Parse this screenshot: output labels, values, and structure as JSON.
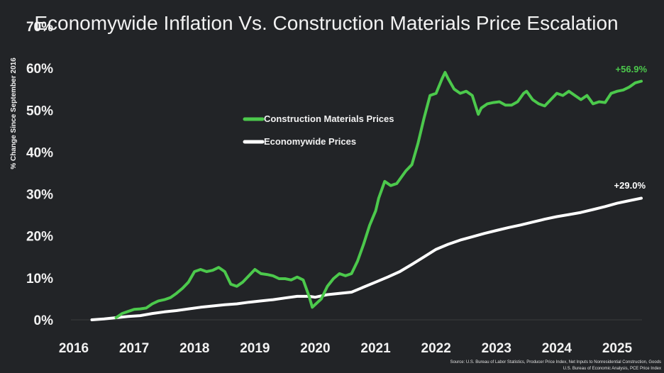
{
  "chart_data": {
    "type": "line",
    "title": "Economywide Inflation Vs. Construction Materials Price Escalation",
    "ylabel": "% Change Since September 2016",
    "xlabel": "",
    "ylim": [
      0,
      70
    ],
    "xlim": [
      2016,
      2025.4
    ],
    "y_ticks": [
      "0%",
      "10%",
      "20%",
      "30%",
      "40%",
      "50%",
      "60%",
      "70%"
    ],
    "x_ticks": [
      "2016",
      "2017",
      "2018",
      "2019",
      "2020",
      "2021",
      "2022",
      "2023",
      "2024",
      "2025"
    ],
    "legend_position": "center-left",
    "grid": false,
    "series": [
      {
        "name": "Construction Materials Prices",
        "color": "#4cc94c",
        "end_label": "+56.9%",
        "points": [
          [
            2016.7,
            0.5
          ],
          [
            2016.8,
            1.5
          ],
          [
            2016.9,
            2.0
          ],
          [
            2017.0,
            2.5
          ],
          [
            2017.1,
            2.6
          ],
          [
            2017.2,
            2.8
          ],
          [
            2017.3,
            3.8
          ],
          [
            2017.4,
            4.5
          ],
          [
            2017.5,
            4.8
          ],
          [
            2017.6,
            5.3
          ],
          [
            2017.7,
            6.3
          ],
          [
            2017.8,
            7.5
          ],
          [
            2017.9,
            9.0
          ],
          [
            2018.0,
            11.5
          ],
          [
            2018.1,
            12.0
          ],
          [
            2018.2,
            11.5
          ],
          [
            2018.3,
            11.8
          ],
          [
            2018.4,
            12.5
          ],
          [
            2018.5,
            11.5
          ],
          [
            2018.6,
            8.5
          ],
          [
            2018.7,
            8.0
          ],
          [
            2018.8,
            9.0
          ],
          [
            2018.9,
            10.5
          ],
          [
            2019.0,
            12.0
          ],
          [
            2019.1,
            11.0
          ],
          [
            2019.2,
            10.8
          ],
          [
            2019.3,
            10.5
          ],
          [
            2019.4,
            9.8
          ],
          [
            2019.5,
            9.8
          ],
          [
            2019.6,
            9.5
          ],
          [
            2019.7,
            10.2
          ],
          [
            2019.8,
            9.5
          ],
          [
            2019.9,
            5.5
          ],
          [
            2019.95,
            3.0
          ],
          [
            2020.1,
            5.0
          ],
          [
            2020.2,
            8.0
          ],
          [
            2020.3,
            9.8
          ],
          [
            2020.4,
            11.0
          ],
          [
            2020.5,
            10.5
          ],
          [
            2020.6,
            11.0
          ],
          [
            2020.7,
            14.0
          ],
          [
            2020.8,
            18.0
          ],
          [
            2020.9,
            22.5
          ],
          [
            2021.0,
            26.0
          ],
          [
            2021.05,
            29.0
          ],
          [
            2021.15,
            33.0
          ],
          [
            2021.25,
            32.0
          ],
          [
            2021.35,
            32.5
          ],
          [
            2021.5,
            35.5
          ],
          [
            2021.6,
            37.0
          ],
          [
            2021.7,
            42.0
          ],
          [
            2021.8,
            48.0
          ],
          [
            2021.9,
            53.5
          ],
          [
            2022.0,
            54.0
          ],
          [
            2022.1,
            57.5
          ],
          [
            2022.15,
            59.0
          ],
          [
            2022.2,
            57.5
          ],
          [
            2022.3,
            55.0
          ],
          [
            2022.4,
            54.0
          ],
          [
            2022.5,
            54.5
          ],
          [
            2022.6,
            53.5
          ],
          [
            2022.7,
            49.0
          ],
          [
            2022.75,
            50.5
          ],
          [
            2022.85,
            51.5
          ],
          [
            2022.95,
            51.8
          ],
          [
            2023.05,
            52.0
          ],
          [
            2023.15,
            51.2
          ],
          [
            2023.25,
            51.2
          ],
          [
            2023.35,
            52.0
          ],
          [
            2023.45,
            54.0
          ],
          [
            2023.5,
            54.5
          ],
          [
            2023.6,
            52.5
          ],
          [
            2023.7,
            51.5
          ],
          [
            2023.8,
            51.0
          ],
          [
            2023.9,
            52.5
          ],
          [
            2024.0,
            54.0
          ],
          [
            2024.1,
            53.5
          ],
          [
            2024.2,
            54.5
          ],
          [
            2024.3,
            53.5
          ],
          [
            2024.4,
            52.5
          ],
          [
            2024.5,
            53.5
          ],
          [
            2024.6,
            51.5
          ],
          [
            2024.7,
            52.0
          ],
          [
            2024.8,
            51.8
          ],
          [
            2024.9,
            54.0
          ],
          [
            2025.0,
            54.5
          ],
          [
            2025.1,
            54.8
          ],
          [
            2025.2,
            55.5
          ],
          [
            2025.3,
            56.5
          ],
          [
            2025.4,
            56.9
          ]
        ]
      },
      {
        "name": "Economywide Prices",
        "color": "#ffffff",
        "end_label": "+29.0%",
        "points": [
          [
            2016.3,
            0.0
          ],
          [
            2016.5,
            0.2
          ],
          [
            2016.7,
            0.5
          ],
          [
            2016.9,
            0.8
          ],
          [
            2017.1,
            1.0
          ],
          [
            2017.3,
            1.5
          ],
          [
            2017.5,
            1.9
          ],
          [
            2017.7,
            2.2
          ],
          [
            2017.9,
            2.6
          ],
          [
            2018.1,
            3.0
          ],
          [
            2018.3,
            3.3
          ],
          [
            2018.5,
            3.6
          ],
          [
            2018.7,
            3.8
          ],
          [
            2018.9,
            4.2
          ],
          [
            2019.1,
            4.5
          ],
          [
            2019.3,
            4.8
          ],
          [
            2019.5,
            5.2
          ],
          [
            2019.7,
            5.6
          ],
          [
            2019.9,
            5.6
          ],
          [
            2020.0,
            5.4
          ],
          [
            2020.2,
            6.0
          ],
          [
            2020.4,
            6.3
          ],
          [
            2020.6,
            6.6
          ],
          [
            2020.8,
            7.8
          ],
          [
            2021.0,
            9.0
          ],
          [
            2021.2,
            10.2
          ],
          [
            2021.4,
            11.5
          ],
          [
            2021.6,
            13.2
          ],
          [
            2021.8,
            15.0
          ],
          [
            2022.0,
            16.8
          ],
          [
            2022.2,
            18.0
          ],
          [
            2022.4,
            19.0
          ],
          [
            2022.6,
            19.8
          ],
          [
            2022.8,
            20.6
          ],
          [
            2023.0,
            21.3
          ],
          [
            2023.2,
            22.0
          ],
          [
            2023.4,
            22.6
          ],
          [
            2023.6,
            23.3
          ],
          [
            2023.8,
            24.0
          ],
          [
            2024.0,
            24.6
          ],
          [
            2024.2,
            25.1
          ],
          [
            2024.4,
            25.6
          ],
          [
            2024.6,
            26.3
          ],
          [
            2024.8,
            27.0
          ],
          [
            2025.0,
            27.8
          ],
          [
            2025.2,
            28.4
          ],
          [
            2025.4,
            29.0
          ]
        ]
      }
    ],
    "source": [
      "Source: U.S. Bureau of Labor Statistics, Producer Price Index, Net Inputs to Nonresidential Construction, Goods",
      "U.S. Bureau of Economic Analysis, PCE Price Index"
    ]
  },
  "colors": {
    "background": "#222427",
    "text": "#f2f2f2",
    "construction": "#4cc94c",
    "economywide": "#ffffff"
  }
}
